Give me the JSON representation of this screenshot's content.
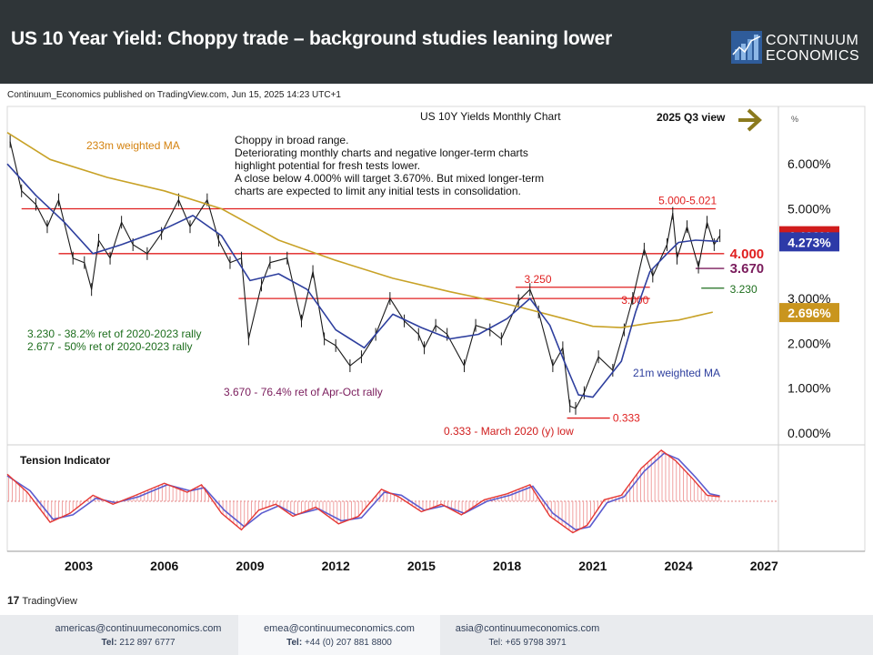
{
  "header": {
    "title": "US 10 Year Yield: Choppy trade – background studies leaning lower",
    "logo_line1": "CONTINUUM",
    "logo_line2": "ECONOMICS"
  },
  "published": "Continuum_Economics published on TradingView.com, Jun 15, 2025 14:23 UTC+1",
  "tradingview_logo": "TradingView",
  "colors": {
    "header_bg": "#2f3538",
    "price_line": "#1a1a1a",
    "ma_233": "#c8a227",
    "ma_21": "#2e3f9e",
    "levels": "#e02020",
    "tension_fast": "#e53935",
    "tension_slow": "#5c5ccf",
    "tension_hist": "#f0a0a0",
    "arrow": "#8b7a1e",
    "badge_red": "#d01c1c",
    "badge_blue": "#2d3aa8",
    "badge_gold": "#c9951e"
  },
  "chart_data": {
    "type": "line",
    "title": "US 10Y Yields Monthly Chart",
    "subtitle": "2025 Q3 view",
    "y_unit": "%",
    "y_ticks": [
      "6.000%",
      "5.000%",
      "3.000%",
      "2.000%",
      "1.000%",
      "0.000%"
    ],
    "x_ticks": [
      "2003",
      "2006",
      "2009",
      "2012",
      "2015",
      "2018",
      "2021",
      "2024",
      "2027"
    ],
    "xlim": [
      2000.5,
      2027.5
    ],
    "ylim": [
      -0.3,
      7.1
    ],
    "grid": false,
    "commentary": [
      "Choppy in broad range.",
      "Deteriorating monthly charts and negative longer-term charts",
      "highlight potential for fresh tests lower.",
      "A close below 4.000% will target 3.670%. But mixed longer-term",
      "charts are expected to limit any initial tests in consolidation."
    ],
    "series": [
      {
        "name": "US 10Y Yield",
        "points": [
          [
            2000.6,
            6.5
          ],
          [
            2001.0,
            5.4
          ],
          [
            2001.5,
            5.1
          ],
          [
            2001.9,
            4.6
          ],
          [
            2002.3,
            5.2
          ],
          [
            2002.8,
            3.9
          ],
          [
            2003.2,
            3.8
          ],
          [
            2003.45,
            3.2
          ],
          [
            2003.7,
            4.3
          ],
          [
            2004.1,
            3.9
          ],
          [
            2004.5,
            4.7
          ],
          [
            2004.9,
            4.2
          ],
          [
            2005.4,
            4.0
          ],
          [
            2005.9,
            4.45
          ],
          [
            2006.5,
            5.2
          ],
          [
            2006.9,
            4.6
          ],
          [
            2007.5,
            5.2
          ],
          [
            2007.9,
            4.3
          ],
          [
            2008.3,
            3.8
          ],
          [
            2008.7,
            3.9
          ],
          [
            2008.95,
            2.1
          ],
          [
            2009.4,
            3.3
          ],
          [
            2009.7,
            3.8
          ],
          [
            2010.3,
            3.9
          ],
          [
            2010.8,
            2.5
          ],
          [
            2011.2,
            3.6
          ],
          [
            2011.6,
            2.1
          ],
          [
            2012.0,
            1.95
          ],
          [
            2012.5,
            1.5
          ],
          [
            2012.9,
            1.7
          ],
          [
            2013.4,
            2.2
          ],
          [
            2013.9,
            3.0
          ],
          [
            2014.4,
            2.5
          ],
          [
            2014.9,
            2.2
          ],
          [
            2015.1,
            1.9
          ],
          [
            2015.5,
            2.4
          ],
          [
            2015.9,
            2.2
          ],
          [
            2016.5,
            1.5
          ],
          [
            2016.9,
            2.4
          ],
          [
            2017.4,
            2.3
          ],
          [
            2017.8,
            2.1
          ],
          [
            2018.4,
            2.95
          ],
          [
            2018.8,
            3.2
          ],
          [
            2019.1,
            2.7
          ],
          [
            2019.6,
            1.5
          ],
          [
            2019.95,
            1.9
          ],
          [
            2020.2,
            0.6
          ],
          [
            2020.4,
            0.55
          ],
          [
            2020.7,
            0.9
          ],
          [
            2021.2,
            1.7
          ],
          [
            2021.7,
            1.4
          ],
          [
            2022.1,
            2.3
          ],
          [
            2022.4,
            3.0
          ],
          [
            2022.8,
            4.1
          ],
          [
            2023.1,
            3.5
          ],
          [
            2023.6,
            4.2
          ],
          [
            2023.8,
            4.9
          ],
          [
            2023.95,
            3.9
          ],
          [
            2024.3,
            4.6
          ],
          [
            2024.7,
            3.7
          ],
          [
            2025.0,
            4.7
          ],
          [
            2025.25,
            4.2
          ],
          [
            2025.45,
            4.4
          ]
        ]
      },
      {
        "name": "233m weighted MA",
        "points": [
          [
            2000.5,
            6.7
          ],
          [
            2002.0,
            6.1
          ],
          [
            2004.0,
            5.7
          ],
          [
            2006.0,
            5.4
          ],
          [
            2008.0,
            5.0
          ],
          [
            2010.0,
            4.3
          ],
          [
            2012.0,
            3.85
          ],
          [
            2014.0,
            3.45
          ],
          [
            2016.0,
            3.15
          ],
          [
            2017.5,
            2.95
          ],
          [
            2018.5,
            2.8
          ],
          [
            2020.0,
            2.55
          ],
          [
            2021.0,
            2.38
          ],
          [
            2022.0,
            2.35
          ],
          [
            2023.0,
            2.45
          ],
          [
            2024.0,
            2.52
          ],
          [
            2025.2,
            2.696
          ]
        ]
      },
      {
        "name": "21m weighted MA",
        "points": [
          [
            2000.5,
            6.0
          ],
          [
            2001.5,
            5.3
          ],
          [
            2002.5,
            4.7
          ],
          [
            2003.5,
            4.0
          ],
          [
            2004.5,
            4.2
          ],
          [
            2006.0,
            4.55
          ],
          [
            2007.0,
            4.85
          ],
          [
            2008.0,
            4.4
          ],
          [
            2009.0,
            3.4
          ],
          [
            2010.0,
            3.55
          ],
          [
            2011.0,
            3.2
          ],
          [
            2012.0,
            2.3
          ],
          [
            2013.0,
            1.9
          ],
          [
            2014.0,
            2.65
          ],
          [
            2015.0,
            2.35
          ],
          [
            2016.0,
            2.1
          ],
          [
            2017.0,
            2.2
          ],
          [
            2018.0,
            2.55
          ],
          [
            2018.8,
            3.0
          ],
          [
            2019.5,
            2.4
          ],
          [
            2020.0,
            1.6
          ],
          [
            2020.5,
            0.85
          ],
          [
            2021.0,
            0.8
          ],
          [
            2022.0,
            1.6
          ],
          [
            2022.5,
            2.7
          ],
          [
            2023.0,
            3.6
          ],
          [
            2023.6,
            4.0
          ],
          [
            2024.0,
            4.25
          ],
          [
            2024.6,
            4.3
          ],
          [
            2025.4,
            4.273
          ]
        ]
      }
    ],
    "level_lines": [
      {
        "label": "5.000-5.021",
        "value": 5.0
      },
      {
        "label": "4.000",
        "value": 4.0
      },
      {
        "label": "3.670",
        "value": 3.67
      },
      {
        "label": "3.250",
        "value": 3.25
      },
      {
        "label": "3.230",
        "value": 3.23
      },
      {
        "label": "3.000",
        "value": 3.0
      },
      {
        "label": "0.333",
        "value": 0.333
      }
    ],
    "badges": [
      {
        "label": "4.409%",
        "value": 4.409,
        "color": "#d01c1c"
      },
      {
        "label": "4.273%",
        "value": 4.273,
        "color": "#2d3aa8"
      },
      {
        "label": "2.696%",
        "value": 2.696,
        "color": "#c9951e"
      }
    ],
    "annotations": [
      "233m weighted MA",
      "21m weighted MA",
      "3.230 - 38.2% ret of 2020-2023 rally",
      "2.677 - 50% ret of 2020-2023 rally",
      "3.670 - 76.4% ret of Apr-Oct rally",
      "0.333 - March 2020 (y) low"
    ],
    "tension_indicator": {
      "title": "Tension Indicator",
      "fast": [
        [
          2000.5,
          0.9
        ],
        [
          2001.2,
          0.3
        ],
        [
          2002.0,
          -0.7
        ],
        [
          2002.7,
          -0.4
        ],
        [
          2003.5,
          0.2
        ],
        [
          2004.2,
          -0.1
        ],
        [
          2005.0,
          0.2
        ],
        [
          2006.0,
          0.6
        ],
        [
          2006.8,
          0.3
        ],
        [
          2007.3,
          0.55
        ],
        [
          2008.0,
          -0.4
        ],
        [
          2008.7,
          -0.95
        ],
        [
          2009.3,
          -0.3
        ],
        [
          2009.9,
          -0.1
        ],
        [
          2010.5,
          -0.5
        ],
        [
          2011.3,
          -0.2
        ],
        [
          2012.1,
          -0.75
        ],
        [
          2012.8,
          -0.5
        ],
        [
          2013.6,
          0.4
        ],
        [
          2014.2,
          0.15
        ],
        [
          2015.0,
          -0.35
        ],
        [
          2015.7,
          -0.1
        ],
        [
          2016.4,
          -0.45
        ],
        [
          2017.2,
          0.05
        ],
        [
          2018.0,
          0.25
        ],
        [
          2018.8,
          0.55
        ],
        [
          2019.5,
          -0.5
        ],
        [
          2020.3,
          -1.05
        ],
        [
          2020.8,
          -0.8
        ],
        [
          2021.4,
          0.05
        ],
        [
          2022.0,
          0.2
        ],
        [
          2022.7,
          1.1
        ],
        [
          2023.4,
          1.7
        ],
        [
          2023.9,
          1.35
        ],
        [
          2024.5,
          0.75
        ],
        [
          2025.0,
          0.2
        ],
        [
          2025.45,
          0.15
        ]
      ],
      "slow": [
        [
          2000.5,
          0.85
        ],
        [
          2001.3,
          0.35
        ],
        [
          2002.1,
          -0.6
        ],
        [
          2002.8,
          -0.45
        ],
        [
          2003.6,
          0.1
        ],
        [
          2004.3,
          -0.05
        ],
        [
          2005.1,
          0.15
        ],
        [
          2006.1,
          0.55
        ],
        [
          2006.9,
          0.35
        ],
        [
          2007.4,
          0.45
        ],
        [
          2008.1,
          -0.3
        ],
        [
          2008.8,
          -0.85
        ],
        [
          2009.4,
          -0.4
        ],
        [
          2010.0,
          -0.15
        ],
        [
          2010.6,
          -0.45
        ],
        [
          2011.4,
          -0.25
        ],
        [
          2012.2,
          -0.65
        ],
        [
          2012.9,
          -0.55
        ],
        [
          2013.7,
          0.3
        ],
        [
          2014.3,
          0.2
        ],
        [
          2015.1,
          -0.3
        ],
        [
          2015.8,
          -0.15
        ],
        [
          2016.5,
          -0.4
        ],
        [
          2017.3,
          0.0
        ],
        [
          2018.1,
          0.2
        ],
        [
          2018.9,
          0.5
        ],
        [
          2019.6,
          -0.4
        ],
        [
          2020.4,
          -0.95
        ],
        [
          2020.9,
          -0.85
        ],
        [
          2021.5,
          -0.05
        ],
        [
          2022.1,
          0.15
        ],
        [
          2022.8,
          1.0
        ],
        [
          2023.5,
          1.6
        ],
        [
          2024.0,
          1.4
        ],
        [
          2024.6,
          0.8
        ],
        [
          2025.1,
          0.25
        ],
        [
          2025.45,
          0.18
        ]
      ]
    }
  },
  "footer": {
    "contacts": [
      {
        "email": "americas@continuumeconomics.com",
        "tel_label": "Tel:",
        "tel": "212 897 6777"
      },
      {
        "email": "emea@continuumeconomics.com",
        "tel_label": "Tel:",
        "tel": "+44 (0) 207 881 8800"
      },
      {
        "email": "asia@continuumeconomics.com",
        "tel_label": "Tel:",
        "tel": "+65 9798 3971"
      }
    ]
  }
}
